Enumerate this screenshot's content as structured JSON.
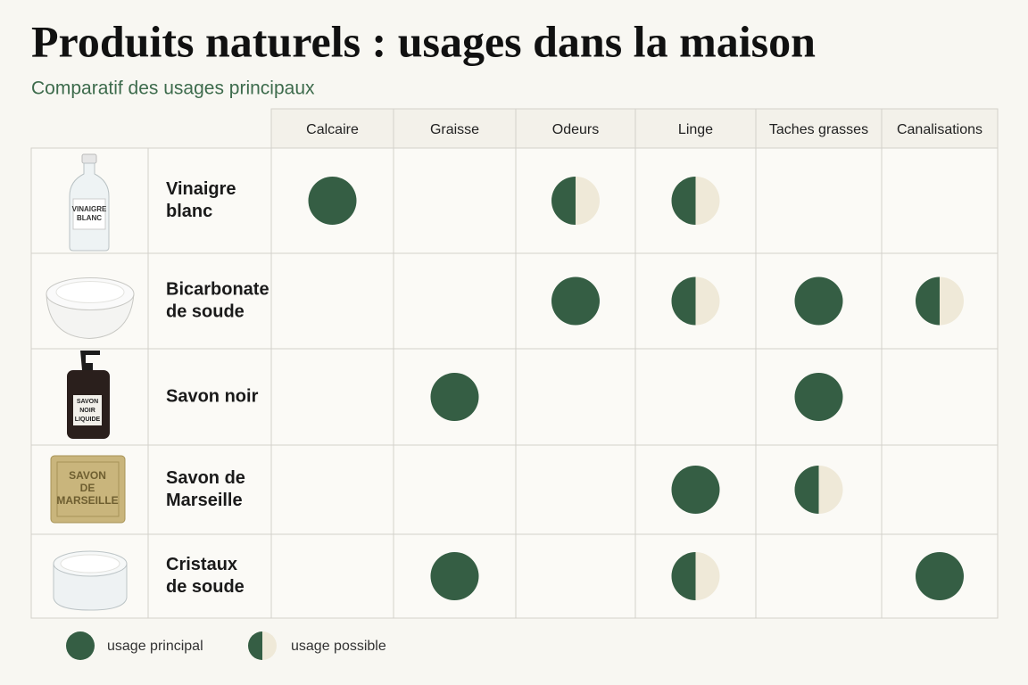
{
  "header": {
    "title": "Produits naturels : usages dans la maison",
    "subtitle": "Comparatif des usages principaux"
  },
  "legend": [
    {
      "label": "usage principal",
      "symbol": "full"
    },
    {
      "label": "usage possible",
      "symbol": "half"
    }
  ],
  "table": {
    "columns": [
      "Calcaire",
      "Graisse",
      "Odeurs",
      "Linge",
      "Taches grasses",
      "Canalisations"
    ],
    "rows": [
      {
        "name": [
          "Vinaigre",
          "blanc"
        ],
        "image_label": [
          "VINAIGRE",
          "BLANC"
        ],
        "cells": [
          0,
          null,
          1,
          1,
          null,
          null
        ]
      },
      {
        "name": [
          "Bicarbonate",
          "de soude"
        ],
        "cells": [
          null,
          null,
          0,
          1,
          0,
          1
        ]
      },
      {
        "name": [
          "Savon noir"
        ],
        "image_label": [
          "SAVON",
          "NOIR",
          "LIQUIDE"
        ],
        "cells": [
          null,
          0,
          null,
          null,
          0,
          null
        ]
      },
      {
        "name": [
          "Savon de",
          "Marseille"
        ],
        "image_label": [
          "SAVON",
          "DE",
          "MARSEILLE"
        ],
        "cells": [
          null,
          null,
          null,
          0,
          1,
          null
        ]
      },
      {
        "name": [
          "Cristaux",
          "de soude"
        ],
        "cells": [
          null,
          0,
          null,
          1,
          null,
          0
        ]
      }
    ]
  }
}
